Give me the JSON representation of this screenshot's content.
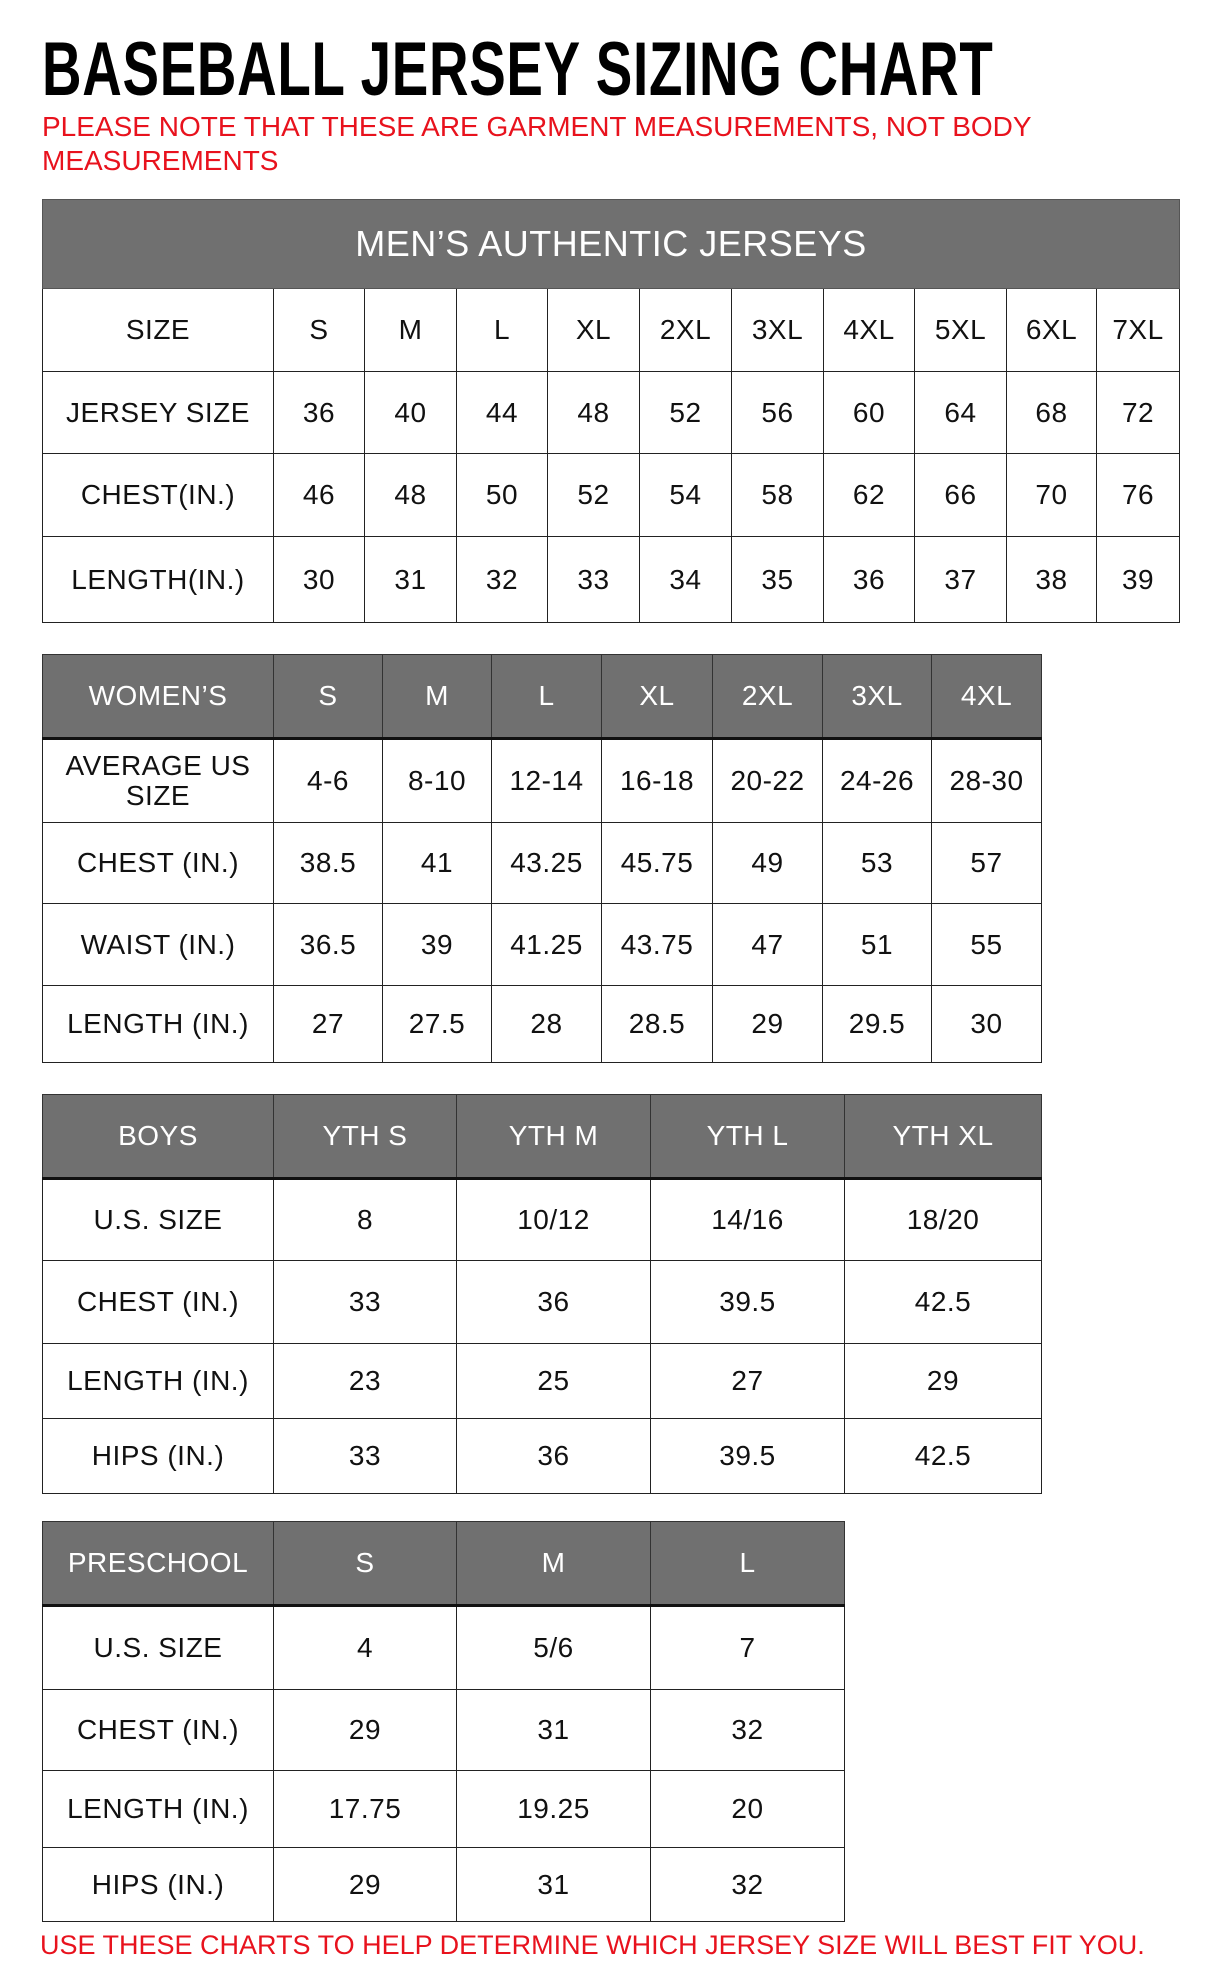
{
  "title": "BASEBALL JERSEY SIZING CHART",
  "note": "PLEASE NOTE THAT THESE ARE GARMENT MEASUREMENTS, NOT BODY MEASUREMENTS",
  "bottom_note": "USE THESE CHARTS TO HELP DETERMINE WHICH JERSEY SIZE WILL BEST FIT YOU.",
  "colors": {
    "header_bg": "#707070",
    "note_red": "#e8121d"
  },
  "tables": [
    {
      "banner": "MEN’S AUTHENTIC JERSEYS",
      "header_dark": false,
      "header": [
        "SIZE",
        "S",
        "M",
        "L",
        "XL",
        "2XL",
        "3XL",
        "4XL",
        "5XL",
        "6XL",
        "7XL"
      ],
      "rows": [
        [
          "JERSEY SIZE",
          "36",
          "40",
          "44",
          "48",
          "52",
          "56",
          "60",
          "64",
          "68",
          "72"
        ],
        [
          "CHEST(IN.)",
          "46",
          "48",
          "50",
          "52",
          "54",
          "58",
          "62",
          "66",
          "70",
          "76"
        ],
        [
          "LENGTH(IN.)",
          "30",
          "31",
          "32",
          "33",
          "34",
          "35",
          "36",
          "37",
          "38",
          "39"
        ]
      ]
    },
    {
      "header_dark": true,
      "header": [
        "WOMEN’S",
        "S",
        "M",
        "L",
        "XL",
        "2XL",
        "3XL",
        "4XL"
      ],
      "rows": [
        [
          "AVERAGE US SIZE",
          "4-6",
          "8-10",
          "12-14",
          "16-18",
          "20-22",
          "24-26",
          "28-30"
        ],
        [
          "CHEST (IN.)",
          "38.5",
          "41",
          "43.25",
          "45.75",
          "49",
          "53",
          "57"
        ],
        [
          "WAIST (IN.)",
          "36.5",
          "39",
          "41.25",
          "43.75",
          "47",
          "51",
          "55"
        ],
        [
          "LENGTH (IN.)",
          "27",
          "27.5",
          "28",
          "28.5",
          "29",
          "29.5",
          "30"
        ]
      ]
    },
    {
      "header_dark": true,
      "header": [
        "BOYS",
        "YTH S",
        "YTH M",
        "YTH L",
        "YTH XL"
      ],
      "rows": [
        [
          "U.S. SIZE",
          "8",
          "10/12",
          "14/16",
          "18/20"
        ],
        [
          "CHEST (IN.)",
          "33",
          "36",
          "39.5",
          "42.5"
        ],
        [
          "LENGTH (IN.)",
          "23",
          "25",
          "27",
          "29"
        ],
        [
          "HIPS (IN.)",
          "33",
          "36",
          "39.5",
          "42.5"
        ]
      ]
    },
    {
      "header_dark": true,
      "header": [
        "PRESCHOOL",
        "S",
        "M",
        "L"
      ],
      "rows": [
        [
          "U.S. SIZE",
          "4",
          "5/6",
          "7"
        ],
        [
          "CHEST (IN.)",
          "29",
          "31",
          "32"
        ],
        [
          "LENGTH (IN.)",
          "17.75",
          "19.25",
          "20"
        ],
        [
          "HIPS (IN.)",
          "29",
          "31",
          "32"
        ]
      ]
    }
  ]
}
